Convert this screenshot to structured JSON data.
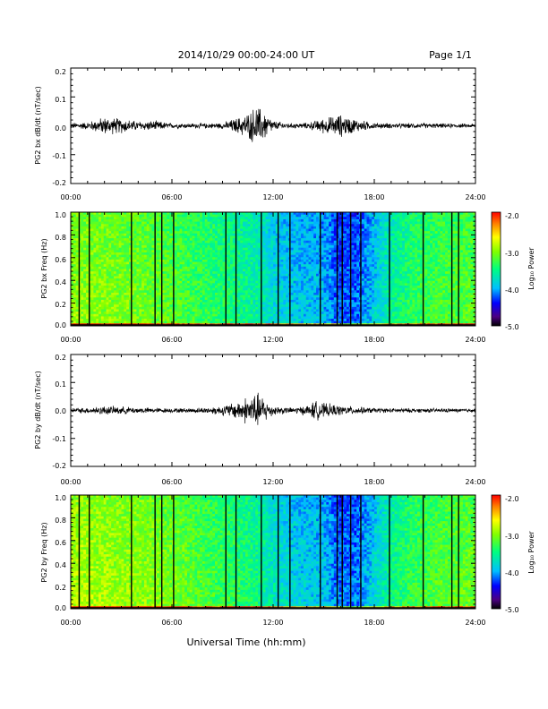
{
  "header": {
    "title": "2014/10/29  00:00-24:00 UT",
    "page": "Page 1/1"
  },
  "footer": {
    "xlabel": "Universal Time (hh:mm)"
  },
  "colors": {
    "colorscale": [
      "#000000",
      "#4b0082",
      "#0000ff",
      "#00bfff",
      "#00ff7f",
      "#7fff00",
      "#ffff00",
      "#ff7f00",
      "#ff0000"
    ]
  },
  "chart_data": [
    {
      "type": "line",
      "ylabel": "PG2 bx dB/dt (nT/sec)",
      "xlim": [
        "00:00",
        "24:00"
      ],
      "ylim": [
        -0.2,
        0.2
      ],
      "xtick_labels": [
        "00:00",
        "06:00",
        "12:00",
        "18:00",
        "24:00"
      ],
      "ytick_labels": [
        "0.2",
        "0.1",
        "0.0",
        "-0.1",
        "-0.2"
      ],
      "envelope": {
        "x_hours": [
          0,
          1,
          2,
          3,
          4,
          5,
          6,
          7,
          8,
          9,
          10,
          10.5,
          11,
          11.5,
          12,
          13,
          14,
          15,
          16,
          16.5,
          17,
          18,
          19,
          20,
          21,
          22,
          23,
          24
        ],
        "amplitude": [
          0.012,
          0.015,
          0.035,
          0.03,
          0.018,
          0.02,
          0.01,
          0.01,
          0.01,
          0.012,
          0.035,
          0.05,
          0.08,
          0.06,
          0.02,
          0.01,
          0.012,
          0.03,
          0.045,
          0.035,
          0.025,
          0.012,
          0.01,
          0.01,
          0.01,
          0.009,
          0.008,
          0.008
        ]
      }
    },
    {
      "type": "heatmap",
      "ylabel": "PG2 bx Freq (Hz)",
      "xlim": [
        "00:00",
        "24:00"
      ],
      "ylim": [
        0.0,
        1.0
      ],
      "xtick_labels": [
        "00:00",
        "06:00",
        "12:00",
        "18:00",
        "24:00"
      ],
      "ytick_labels": [
        "1.0",
        "0.8",
        "0.6",
        "0.4",
        "0.2",
        "0.0"
      ],
      "colorbar": {
        "label": "Log₁₀ Power",
        "ticks": [
          "-2.0",
          "-3.0",
          "-4.0",
          "-5.0"
        ],
        "range": [
          -5.0,
          -2.0
        ]
      },
      "gap_times_hours": [
        0.5,
        1.1,
        3.6,
        5.0,
        5.4,
        6.1,
        9.2,
        9.8,
        11.3,
        12.3,
        13.0,
        14.8,
        15.8,
        16.1,
        16.6,
        17.2,
        18.9,
        20.9,
        22.6,
        23.0
      ],
      "time_profile": {
        "x_hours": [
          0,
          2,
          4,
          6,
          8,
          10,
          11,
          12,
          13,
          14,
          15,
          16,
          17,
          18,
          19,
          20,
          22,
          24
        ],
        "log_power": [
          -3.1,
          -3.15,
          -3.2,
          -3.3,
          -3.45,
          -3.6,
          -3.7,
          -3.9,
          -4.0,
          -4.05,
          -4.1,
          -4.35,
          -4.3,
          -4.0,
          -3.7,
          -3.5,
          -3.35,
          -3.3
        ]
      }
    },
    {
      "type": "line",
      "ylabel": "PG2 by dB/dt (nT/sec)",
      "xlim": [
        "00:00",
        "24:00"
      ],
      "ylim": [
        -0.2,
        0.2
      ],
      "xtick_labels": [
        "00:00",
        "06:00",
        "12:00",
        "18:00",
        "24:00"
      ],
      "ytick_labels": [
        "0.2",
        "0.1",
        "0.0",
        "-0.1",
        "-0.2"
      ],
      "envelope": {
        "x_hours": [
          0,
          1,
          2,
          3,
          4,
          5,
          6,
          7,
          8,
          9,
          10,
          10.5,
          11,
          11.5,
          12,
          13,
          14,
          14.5,
          15,
          16,
          17,
          18,
          19,
          20,
          21,
          22,
          23,
          24
        ],
        "amplitude": [
          0.01,
          0.012,
          0.018,
          0.016,
          0.012,
          0.01,
          0.009,
          0.01,
          0.012,
          0.02,
          0.04,
          0.06,
          0.075,
          0.05,
          0.02,
          0.012,
          0.02,
          0.04,
          0.03,
          0.02,
          0.015,
          0.01,
          0.009,
          0.009,
          0.009,
          0.008,
          0.008,
          0.008
        ]
      }
    },
    {
      "type": "heatmap",
      "ylabel": "PG2 by Freq (Hz)",
      "xlim": [
        "00:00",
        "24:00"
      ],
      "ylim": [
        0.0,
        1.0
      ],
      "xtick_labels": [
        "00:00",
        "06:00",
        "12:00",
        "18:00",
        "24:00"
      ],
      "ytick_labels": [
        "1.0",
        "0.8",
        "0.6",
        "0.4",
        "0.2",
        "0.0"
      ],
      "colorbar": {
        "label": "Log₁₀ Power",
        "ticks": [
          "-2.0",
          "-3.0",
          "-4.0",
          "-5.0"
        ],
        "range": [
          -5.0,
          -2.0
        ]
      },
      "gap_times_hours": [
        0.5,
        1.1,
        3.6,
        5.0,
        5.4,
        6.1,
        9.2,
        9.8,
        11.3,
        12.3,
        13.0,
        14.8,
        15.8,
        16.1,
        16.6,
        17.2,
        18.9,
        20.9,
        22.6,
        23.0
      ],
      "time_profile": {
        "x_hours": [
          0,
          2,
          4,
          6,
          8,
          10,
          11,
          12,
          13,
          14,
          15,
          16,
          17,
          18,
          19,
          20,
          22,
          24
        ],
        "log_power": [
          -3.0,
          -3.05,
          -3.1,
          -3.2,
          -3.35,
          -3.5,
          -3.6,
          -3.8,
          -3.95,
          -4.0,
          -4.05,
          -4.3,
          -4.25,
          -3.95,
          -3.65,
          -3.45,
          -3.3,
          -3.25
        ]
      }
    }
  ]
}
